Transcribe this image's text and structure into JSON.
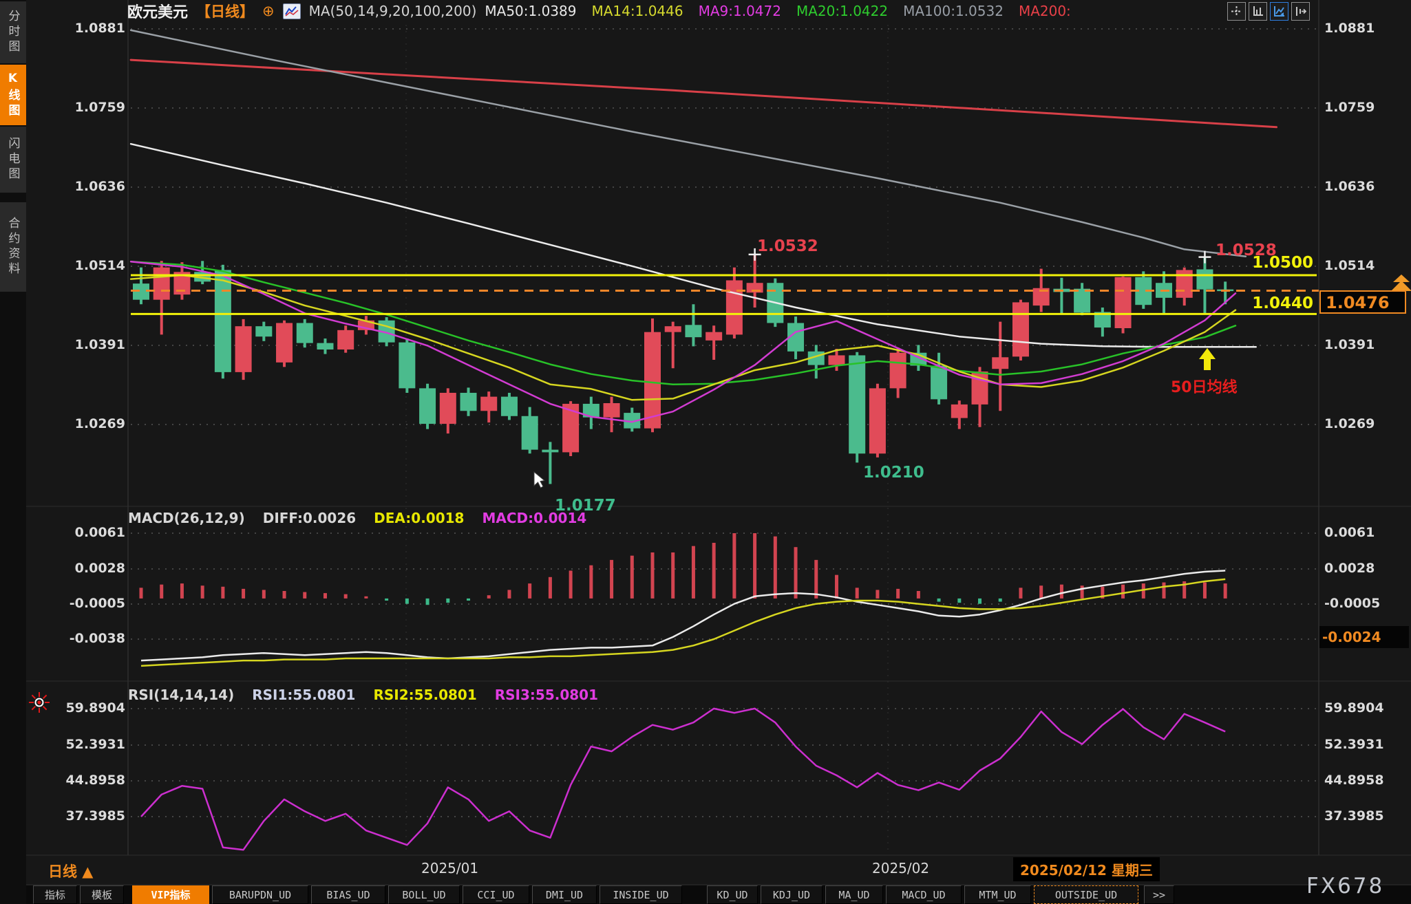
{
  "header": {
    "symbol": "欧元美元",
    "period_tag": "【日线】",
    "ma_settings": "MA(50,14,9,20,100,200)",
    "ma_values": [
      {
        "text": "MA50:1.0389",
        "color": "#e8e8e8"
      },
      {
        "text": "MA14:1.0446",
        "color": "#d6da2e"
      },
      {
        "text": "MA9:1.0472",
        "color": "#e23ce2"
      },
      {
        "text": "MA20:1.0422",
        "color": "#2ecc2e"
      },
      {
        "text": "MA100:1.0532",
        "color": "#989ea6"
      },
      {
        "text": "MA200:",
        "color": "#e84048"
      }
    ],
    "icons": [
      "crosshair-layout-icon",
      "axes-setup-icon",
      "line-chart-icon",
      "compare-shift-icon"
    ]
  },
  "sidebar": {
    "items": [
      {
        "label": "分时图",
        "active": false
      },
      {
        "label": "K线图",
        "active": true
      },
      {
        "label": "闪电图",
        "active": false
      },
      {
        "label": "合约资料",
        "active": false
      }
    ]
  },
  "indicators": {
    "macd_row": [
      {
        "text": "MACD(26,12,9)",
        "color": "#d8d8d8"
      },
      {
        "text": "DIFF:0.0026",
        "color": "#d8d8d8"
      },
      {
        "text": "DEA:0.0018",
        "color": "#e8e800"
      },
      {
        "text": "MACD:0.0014",
        "color": "#e23ce2"
      }
    ],
    "rsi_row": [
      {
        "text": "RSI(14,14,14)",
        "color": "#d8d8d8"
      },
      {
        "text": "RSI1:55.0801",
        "color": "#ccd2e8"
      },
      {
        "text": "RSI2:55.0801",
        "color": "#e8e800"
      },
      {
        "text": "RSI3:55.0801",
        "color": "#e23ce2"
      }
    ]
  },
  "annotations": {
    "high1": "1.0532",
    "high2": "1.0528",
    "level_upper": "1.0500",
    "level_lower": "1.0440",
    "last_price": "1.0476",
    "low1": "1.0177",
    "low2": "1.0210",
    "ma50_note": "50日均线",
    "macd_badge": "-0.0024"
  },
  "footer": {
    "period_label": "日线 ▲",
    "x_labels": [
      "2025/01",
      "2025/02"
    ],
    "date_tooltip": "2025/02/12 星期三"
  },
  "toolbar": {
    "tabs": [
      {
        "label": "指标"
      },
      {
        "label": "模板"
      },
      {
        "label": "VIP指标",
        "active": true
      },
      {
        "label": "BARUPDN_UD"
      },
      {
        "label": "BIAS_UD"
      },
      {
        "label": "BOLL_UD"
      },
      {
        "label": "CCI_UD"
      },
      {
        "label": "DMI_UD"
      },
      {
        "label": "INSIDE_UD"
      },
      {
        "label": "KD_UD"
      },
      {
        "label": "KDJ_UD"
      },
      {
        "label": "MA_UD"
      },
      {
        "label": "MACD_UD"
      },
      {
        "label": "MTM_UD"
      },
      {
        "label": "OUTSIDE_UD",
        "selected": true
      },
      {
        "label": ">>"
      }
    ]
  },
  "watermark": "FX678",
  "chart_data": {
    "type": "candlestick",
    "title": "欧元美元 日线 (EUR/USD Daily)",
    "legend_position": "top",
    "grid": true,
    "axes": {
      "main": [
        "1.0881",
        "1.0759",
        "1.0636",
        "1.0514",
        "1.0391",
        "1.0269"
      ],
      "main_values": [
        1.0881,
        1.0759,
        1.0636,
        1.0514,
        1.0391,
        1.0269
      ],
      "macd": [
        "0.0061",
        "0.0028",
        "-0.0005",
        "-0.0038"
      ],
      "macd_values": [
        0.0061,
        0.0028,
        -0.0005,
        -0.0038
      ],
      "macd_right": [
        "0.0061",
        "0.0028",
        "-0.0005"
      ],
      "rsi": [
        "59.8904",
        "52.3931",
        "44.8958",
        "37.3985"
      ],
      "rsi_values": [
        59.8904,
        52.3931,
        44.8958,
        37.3985
      ]
    },
    "x_labels": [
      "2025/01",
      "2025/02"
    ],
    "levels": {
      "upper": 1.05,
      "lower": 1.044,
      "last": 1.0476
    },
    "marked_points": {
      "high1": 1.0532,
      "high2": 1.0528,
      "low1": 1.0177,
      "low2": 1.021
    },
    "candles": [
      [
        1.0487,
        1.0512,
        1.0455,
        1.0462
      ],
      [
        1.0462,
        1.0522,
        1.0408,
        1.0512
      ],
      [
        1.047,
        1.052,
        1.0462,
        1.0505
      ],
      [
        1.0505,
        1.0522,
        1.0486,
        1.049
      ],
      [
        1.0508,
        1.0516,
        1.034,
        1.035
      ],
      [
        1.035,
        1.0432,
        1.0338,
        1.0421
      ],
      [
        1.0421,
        1.0428,
        1.0398,
        1.0405
      ],
      [
        1.0365,
        1.043,
        1.0358,
        1.0426
      ],
      [
        1.0426,
        1.0432,
        1.0388,
        1.0395
      ],
      [
        1.0395,
        1.0402,
        1.0378,
        1.0385
      ],
      [
        1.0385,
        1.0422,
        1.038,
        1.0415
      ],
      [
        1.0415,
        1.0437,
        1.0408,
        1.043
      ],
      [
        1.043,
        1.0435,
        1.039,
        1.0396
      ],
      [
        1.0396,
        1.0402,
        1.0318,
        1.0325
      ],
      [
        1.0325,
        1.0332,
        1.0262,
        1.027
      ],
      [
        1.027,
        1.0325,
        1.0255,
        1.0318
      ],
      [
        1.0318,
        1.0326,
        1.0282,
        1.029
      ],
      [
        1.029,
        1.032,
        1.0272,
        1.0312
      ],
      [
        1.0312,
        1.0318,
        1.0276,
        1.0282
      ],
      [
        1.0282,
        1.0296,
        1.0224,
        1.023
      ],
      [
        1.023,
        1.0242,
        1.0177,
        1.0226
      ],
      [
        1.0226,
        1.0305,
        1.022,
        1.0301
      ],
      [
        1.0301,
        1.0312,
        1.0262,
        1.028
      ],
      [
        1.028,
        1.0312,
        1.0257,
        1.0302
      ],
      [
        1.0287,
        1.0295,
        1.0258,
        1.0263
      ],
      [
        1.0263,
        1.0433,
        1.0257,
        1.0412
      ],
      [
        1.0412,
        1.0428,
        1.0356,
        1.0421
      ],
      [
        1.0423,
        1.0455,
        1.039,
        1.0404
      ],
      [
        1.0399,
        1.0422,
        1.0369,
        1.0412
      ],
      [
        1.0408,
        1.0512,
        1.0402,
        1.0492
      ],
      [
        1.0473,
        1.0532,
        1.045,
        1.0488
      ],
      [
        1.0488,
        1.0495,
        1.042,
        1.0426
      ],
      [
        1.0426,
        1.0436,
        1.037,
        1.0382
      ],
      [
        1.0382,
        1.0392,
        1.034,
        1.0361
      ],
      [
        1.0361,
        1.0386,
        1.0352,
        1.0376
      ],
      [
        1.0376,
        1.0381,
        1.021,
        1.0224
      ],
      [
        1.0224,
        1.0332,
        1.0218,
        1.0325
      ],
      [
        1.0325,
        1.0388,
        1.031,
        1.038
      ],
      [
        1.038,
        1.0392,
        1.0352,
        1.036
      ],
      [
        1.036,
        1.038,
        1.03,
        1.0308
      ],
      [
        1.0279,
        1.0306,
        1.0262,
        1.03
      ],
      [
        1.03,
        1.0358,
        1.0265,
        1.0351
      ],
      [
        1.0355,
        1.0428,
        1.029,
        1.0373
      ],
      [
        1.0374,
        1.0462,
        1.0368,
        1.0458
      ],
      [
        1.0453,
        1.051,
        1.0443,
        1.048
      ],
      [
        1.0479,
        1.0496,
        1.044,
        1.0474
      ],
      [
        1.0479,
        1.0488,
        1.0438,
        1.0442
      ],
      [
        1.0443,
        1.045,
        1.0405,
        1.0419
      ],
      [
        1.0418,
        1.0498,
        1.041,
        1.0497
      ],
      [
        1.0497,
        1.0506,
        1.0448,
        1.0454
      ],
      [
        1.0488,
        1.0506,
        1.044,
        1.0465
      ],
      [
        1.0465,
        1.0512,
        1.0453,
        1.0508
      ],
      [
        1.0509,
        1.0528,
        1.0441,
        1.0478
      ],
      [
        1.0478,
        1.049,
        1.0455,
        1.0476
      ]
    ],
    "ma_anchors": {
      "ma200": [
        [
          -0.5,
          1.0833
        ],
        [
          26,
          1.0786
        ],
        [
          55.5,
          1.0729
        ]
      ],
      "ma100": [
        [
          -0.5,
          1.0879
        ],
        [
          6,
          1.0836
        ],
        [
          12,
          1.0798
        ],
        [
          18,
          1.076
        ],
        [
          24,
          1.0722
        ],
        [
          30,
          1.0686
        ],
        [
          36,
          1.065
        ],
        [
          42,
          1.0612
        ],
        [
          46,
          1.0582
        ],
        [
          49,
          1.0558
        ],
        [
          51,
          1.054
        ],
        [
          54,
          1.0529
        ]
      ],
      "ma50": [
        [
          -0.5,
          1.0703
        ],
        [
          4,
          1.067
        ],
        [
          8,
          1.0642
        ],
        [
          12,
          1.0612
        ],
        [
          16,
          1.058
        ],
        [
          20,
          1.0547
        ],
        [
          24,
          1.0514
        ],
        [
          28,
          1.048
        ],
        [
          32,
          1.045
        ],
        [
          36,
          1.0424
        ],
        [
          40,
          1.0405
        ],
        [
          44,
          1.0394
        ],
        [
          47,
          1.039
        ],
        [
          50,
          1.0389
        ],
        [
          54.5,
          1.0389
        ]
      ],
      "ma20": [
        [
          -0.5,
          1.0521
        ],
        [
          2,
          1.0516
        ],
        [
          4,
          1.0506
        ],
        [
          6,
          1.0489
        ],
        [
          8,
          1.0473
        ],
        [
          10,
          1.0457
        ],
        [
          12,
          1.0439
        ],
        [
          14,
          1.0419
        ],
        [
          16,
          1.0399
        ],
        [
          18,
          1.0381
        ],
        [
          20,
          1.0362
        ],
        [
          22,
          1.0347
        ],
        [
          24,
          1.0337
        ],
        [
          26,
          1.0331
        ],
        [
          28,
          1.0332
        ],
        [
          30,
          1.0338
        ],
        [
          32,
          1.0348
        ],
        [
          34,
          1.036
        ],
        [
          36,
          1.0367
        ],
        [
          38,
          1.0362
        ],
        [
          40,
          1.0352
        ],
        [
          42,
          1.0346
        ],
        [
          44,
          1.0351
        ],
        [
          46,
          1.0362
        ],
        [
          48,
          1.0379
        ],
        [
          50,
          1.0392
        ],
        [
          52,
          1.0404
        ],
        [
          53.5,
          1.0422
        ]
      ],
      "ma14": [
        [
          -0.5,
          1.0494
        ],
        [
          2,
          1.05
        ],
        [
          4,
          1.0492
        ],
        [
          6,
          1.0474
        ],
        [
          8,
          1.0453
        ],
        [
          10,
          1.0437
        ],
        [
          12,
          1.0421
        ],
        [
          14,
          1.0401
        ],
        [
          16,
          1.0379
        ],
        [
          18,
          1.0357
        ],
        [
          20,
          1.0331
        ],
        [
          22,
          1.0324
        ],
        [
          24,
          1.0307
        ],
        [
          26,
          1.0309
        ],
        [
          28,
          1.0331
        ],
        [
          30,
          1.0353
        ],
        [
          32,
          1.0365
        ],
        [
          34,
          1.0384
        ],
        [
          36,
          1.0391
        ],
        [
          38,
          1.0377
        ],
        [
          40,
          1.0351
        ],
        [
          42,
          1.0331
        ],
        [
          44,
          1.0327
        ],
        [
          46,
          1.0337
        ],
        [
          48,
          1.0357
        ],
        [
          50,
          1.0383
        ],
        [
          52,
          1.0412
        ],
        [
          53.5,
          1.0446
        ]
      ],
      "ma9": [
        [
          -0.5,
          1.0521
        ],
        [
          2,
          1.0513
        ],
        [
          4,
          1.0499
        ],
        [
          6,
          1.0471
        ],
        [
          8,
          1.0441
        ],
        [
          10,
          1.0425
        ],
        [
          12,
          1.0411
        ],
        [
          14,
          1.0391
        ],
        [
          16,
          1.0361
        ],
        [
          18,
          1.0331
        ],
        [
          20,
          1.0301
        ],
        [
          22,
          1.0281
        ],
        [
          24,
          1.0273
        ],
        [
          26,
          1.0289
        ],
        [
          28,
          1.0323
        ],
        [
          30,
          1.0361
        ],
        [
          32,
          1.0412
        ],
        [
          34,
          1.0429
        ],
        [
          36,
          1.0401
        ],
        [
          38,
          1.0373
        ],
        [
          40,
          1.0346
        ],
        [
          42,
          1.0331
        ],
        [
          44,
          1.0333
        ],
        [
          46,
          1.0347
        ],
        [
          48,
          1.0367
        ],
        [
          50,
          1.0394
        ],
        [
          52,
          1.043
        ],
        [
          53.5,
          1.0472
        ]
      ]
    },
    "macd": {
      "diff": [
        -0.0058,
        -0.0057,
        -0.0056,
        -0.0055,
        -0.0053,
        -0.0052,
        -0.0051,
        -0.0052,
        -0.0053,
        -0.0052,
        -0.0051,
        -0.005,
        -0.0051,
        -0.0053,
        -0.0055,
        -0.0056,
        -0.0055,
        -0.0054,
        -0.0052,
        -0.005,
        -0.0048,
        -0.0047,
        -0.0046,
        -0.0046,
        -0.0045,
        -0.0044,
        -0.0036,
        -0.0026,
        -0.0015,
        -0.0005,
        0.0002,
        0.0004,
        0.0005,
        0.0004,
        0.0001,
        -0.0003,
        -0.0006,
        -0.0009,
        -0.0012,
        -0.0016,
        -0.0017,
        -0.0015,
        -0.0011,
        -0.0006,
        0.0,
        0.0005,
        0.0009,
        0.0012,
        0.0015,
        0.0017,
        0.002,
        0.0023,
        0.0025,
        0.0026
      ],
      "dea": [
        -0.0063,
        -0.0062,
        -0.0061,
        -0.006,
        -0.0059,
        -0.0058,
        -0.0058,
        -0.0057,
        -0.0057,
        -0.0057,
        -0.0056,
        -0.0056,
        -0.0056,
        -0.0056,
        -0.0056,
        -0.0056,
        -0.0056,
        -0.0056,
        -0.0055,
        -0.0055,
        -0.0054,
        -0.0054,
        -0.0053,
        -0.0052,
        -0.0051,
        -0.005,
        -0.0048,
        -0.0044,
        -0.0038,
        -0.003,
        -0.0022,
        -0.0015,
        -0.0009,
        -0.0005,
        -0.0003,
        -0.0002,
        -0.0002,
        -0.0003,
        -0.0005,
        -0.0007,
        -0.0009,
        -0.001,
        -0.001,
        -0.0009,
        -0.0007,
        -0.0004,
        -0.0001,
        0.0002,
        0.0005,
        0.0008,
        0.0011,
        0.0013,
        0.0016,
        0.0018
      ],
      "hist": [
        0.001,
        0.0013,
        0.0014,
        0.0012,
        0.0011,
        0.0009,
        0.0008,
        0.0007,
        0.0006,
        0.0005,
        0.0004,
        0.0002,
        -0.0002,
        -0.0005,
        -0.0006,
        -0.0004,
        -0.0002,
        0.0003,
        0.0008,
        0.0014,
        0.002,
        0.0026,
        0.0031,
        0.0036,
        0.004,
        0.0043,
        0.0043,
        0.0049,
        0.0052,
        0.0061,
        0.0061,
        0.0058,
        0.0048,
        0.0036,
        0.0022,
        0.001,
        0.0008,
        0.0009,
        0.0007,
        -0.0003,
        -0.0004,
        -0.0005,
        -0.0003,
        0.001,
        0.0012,
        0.0013,
        0.0012,
        0.0011,
        0.0013,
        0.0014,
        0.0015,
        0.0016,
        0.0015,
        0.0014
      ]
    },
    "rsi": [
      37.4,
      42.0,
      43.8,
      43.2,
      31.0,
      30.5,
      36.5,
      41.0,
      38.5,
      36.5,
      38.0,
      34.5,
      33.0,
      31.5,
      36.0,
      43.5,
      41.0,
      36.5,
      38.5,
      34.5,
      33.0,
      44.0,
      52.0,
      51.0,
      54.0,
      56.5,
      55.5,
      57.0,
      59.9,
      59.0,
      59.9,
      57.0,
      52.0,
      48.0,
      46.0,
      43.5,
      46.5,
      44.0,
      42.9,
      44.5,
      43.0,
      47.0,
      49.5,
      54.0,
      59.3,
      55.0,
      52.5,
      56.5,
      59.8,
      56.0,
      53.5,
      58.8,
      57.0,
      55.1
    ]
  }
}
